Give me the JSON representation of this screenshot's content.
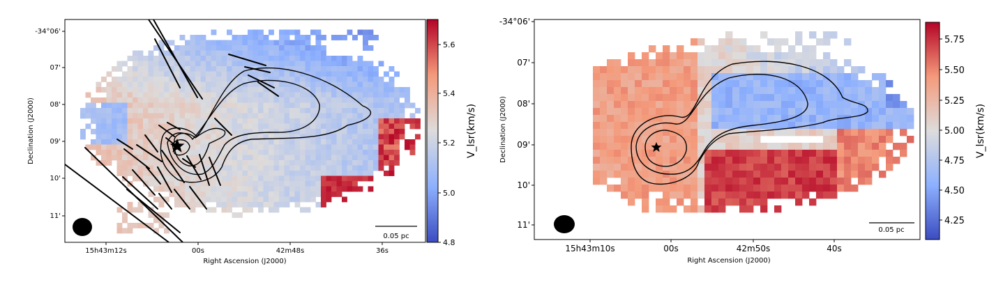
{
  "figure": {
    "panels": [
      {
        "xlabel": "Right Ascension (J2000)",
        "ylabel": "Declination (J2000)",
        "y_ticks": [
          "-34°06'",
          "07'",
          "08'",
          "09'",
          "10'",
          "11'"
        ],
        "x_ticks": [
          "15h43m12s",
          "00s",
          "42m48s",
          "36s"
        ],
        "colorbar_label": "V_lsr(km/s)",
        "colorbar_ticks": [
          "5.6",
          "5.4",
          "5.2",
          "5.0",
          "4.8"
        ],
        "scalebar": "0.05 pc"
      },
      {
        "xlabel": "Right Ascension (J2000)",
        "ylabel": "Declination (J2000)",
        "y_ticks": [
          "-34°06'",
          "07'",
          "08'",
          "09'",
          "10'",
          "11'"
        ],
        "x_ticks": [
          "15h43m10s",
          "00s",
          "42m50s",
          "40s"
        ],
        "colorbar_label": "V_lsr(km/s)",
        "colorbar_ticks": [
          "5.75",
          "5.50",
          "5.25",
          "5.00",
          "4.75",
          "4.50",
          "4.25"
        ],
        "scalebar": "0.05 pc"
      }
    ]
  },
  "chart_data": [
    {
      "type": "heatmap",
      "xlabel": "Right Ascension (J2000)",
      "ylabel": "Declination (J2000)",
      "y_tick_labels": [
        "-34°06'",
        "07'",
        "08'",
        "09'",
        "10'",
        "11'"
      ],
      "x_tick_labels": [
        "15h43m12s",
        "00s",
        "42m48s",
        "36s"
      ],
      "colorbar": {
        "label": "V_lsr(km/s)",
        "range": [
          4.8,
          5.7
        ],
        "ticks": [
          4.8,
          5.0,
          5.2,
          5.4,
          5.6
        ],
        "cmap": "coolwarm"
      },
      "scalebar": "0.05 pc",
      "markers": [
        "star"
      ],
      "overlays": [
        "contours",
        "polarization vectors"
      ]
    },
    {
      "type": "heatmap",
      "xlabel": "Right Ascension (J2000)",
      "ylabel": "Declination (J2000)",
      "y_tick_labels": [
        "-34°06'",
        "07'",
        "08'",
        "09'",
        "10'",
        "11'"
      ],
      "x_tick_labels": [
        "15h43m10s",
        "00s",
        "42m50s",
        "40s"
      ],
      "colorbar": {
        "label": "V_lsr(km/s)",
        "range": [
          4.1,
          5.9
        ],
        "ticks": [
          4.25,
          4.5,
          4.75,
          5.0,
          5.25,
          5.5,
          5.75
        ],
        "cmap": "coolwarm"
      },
      "scalebar": "0.05 pc",
      "markers": [
        "star"
      ],
      "overlays": [
        "contours"
      ]
    }
  ]
}
